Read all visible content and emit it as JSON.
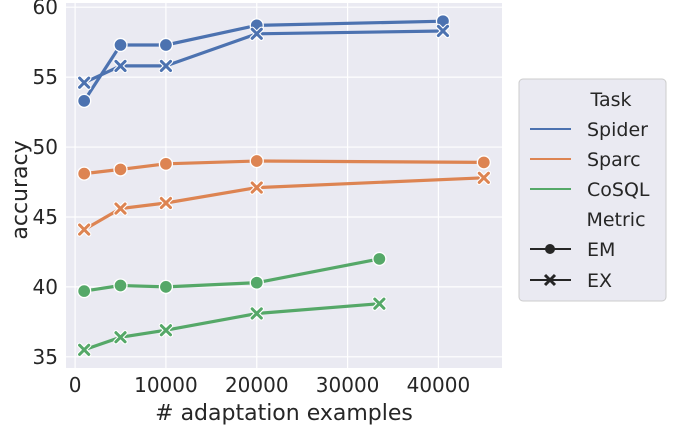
{
  "chart_data": {
    "type": "line",
    "xlabel": "# adaptation examples",
    "ylabel": "accuracy",
    "xlim": [
      -1000,
      47000
    ],
    "ylim": [
      34.2,
      60.3
    ],
    "xticks": [
      0,
      10000,
      20000,
      30000,
      40000
    ],
    "yticks": [
      35,
      40,
      45,
      50,
      55,
      60
    ],
    "grid": true,
    "legend_placement": "right, outside plot",
    "legend": {
      "hue_title": "Task",
      "style_title": "Metric",
      "hue_entries": [
        "Spider",
        "Sparc",
        "CoSQL"
      ],
      "style_entries": [
        "EM",
        "EX"
      ]
    },
    "series": [
      {
        "task": "Spider",
        "metric": "EM",
        "color": "#4c72b0",
        "marker": "circle",
        "x": [
          1000,
          5000,
          10000,
          20000,
          40500
        ],
        "y": [
          53.3,
          57.3,
          57.3,
          58.7,
          59.0
        ]
      },
      {
        "task": "Spider",
        "metric": "EX",
        "color": "#4c72b0",
        "marker": "x",
        "x": [
          1000,
          5000,
          10000,
          20000,
          40500
        ],
        "y": [
          54.6,
          55.8,
          55.8,
          58.1,
          58.3
        ]
      },
      {
        "task": "Sparc",
        "metric": "EM",
        "color": "#dd8452",
        "marker": "circle",
        "x": [
          1000,
          5000,
          10000,
          20000,
          45000
        ],
        "y": [
          48.1,
          48.4,
          48.8,
          49.0,
          48.9
        ]
      },
      {
        "task": "Sparc",
        "metric": "EX",
        "color": "#dd8452",
        "marker": "x",
        "x": [
          1000,
          5000,
          10000,
          20000,
          45000
        ],
        "y": [
          44.1,
          45.6,
          46.0,
          47.1,
          47.8
        ]
      },
      {
        "task": "CoSQL",
        "metric": "EM",
        "color": "#55a868",
        "marker": "circle",
        "x": [
          1000,
          5000,
          10000,
          20000,
          33500
        ],
        "y": [
          39.7,
          40.1,
          40.0,
          40.3,
          42.0
        ]
      },
      {
        "task": "CoSQL",
        "metric": "EX",
        "color": "#55a868",
        "marker": "x",
        "x": [
          1000,
          5000,
          10000,
          20000,
          33500
        ],
        "y": [
          35.5,
          36.4,
          36.9,
          38.1,
          38.8
        ]
      }
    ],
    "colors": {
      "Spider": "#4c72b0",
      "Sparc": "#dd8452",
      "CoSQL": "#55a868",
      "plot_background": "#eaeaf2",
      "grid": "#ffffff",
      "legend_marker": "#262626"
    }
  }
}
